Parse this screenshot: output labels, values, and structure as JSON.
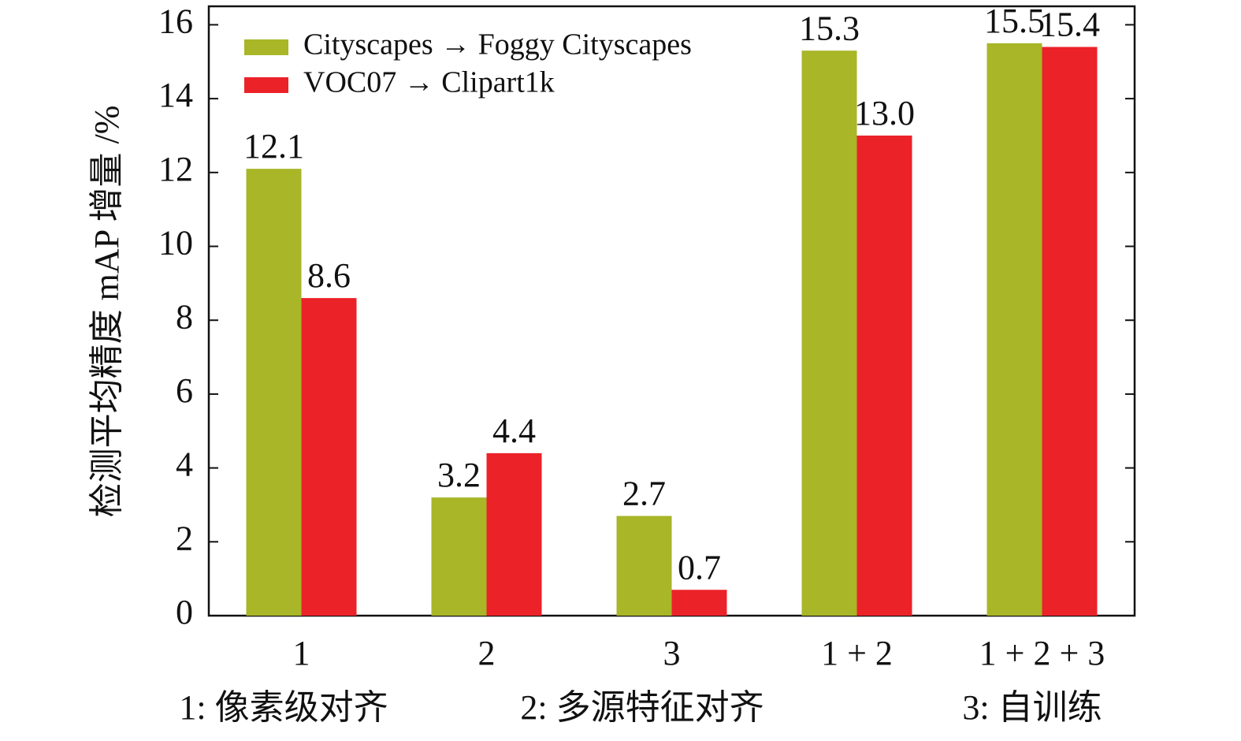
{
  "chart_data": {
    "type": "bar",
    "y_label": "检测平均精度 mAP 增量 /%",
    "categories": [
      "1",
      "2",
      "3",
      "1 + 2",
      "1 + 2 + 3"
    ],
    "series": [
      {
        "name": "Cityscapes → Foggy Cityscapes",
        "color": "#a8b628",
        "values": [
          12.1,
          3.2,
          2.7,
          15.3,
          15.5
        ],
        "value_labels": [
          "12.1",
          "3.2",
          "2.7",
          "15.3",
          "15.5"
        ]
      },
      {
        "name": "VOC07 → Clipart1k",
        "color": "#ec2229",
        "values": [
          8.6,
          4.4,
          0.7,
          13.0,
          15.4
        ],
        "value_labels": [
          "8.6",
          "4.4",
          "0.7",
          "13.0",
          "15.4"
        ]
      }
    ],
    "ylim": [
      0,
      16.5
    ],
    "yticks": [
      0,
      2,
      4,
      6,
      8,
      10,
      12,
      14,
      16
    ],
    "legend": "upper-left",
    "annotations": [
      "1: 像素级对齐",
      "2: 多源特征对齐",
      "3: 自训练"
    ]
  }
}
